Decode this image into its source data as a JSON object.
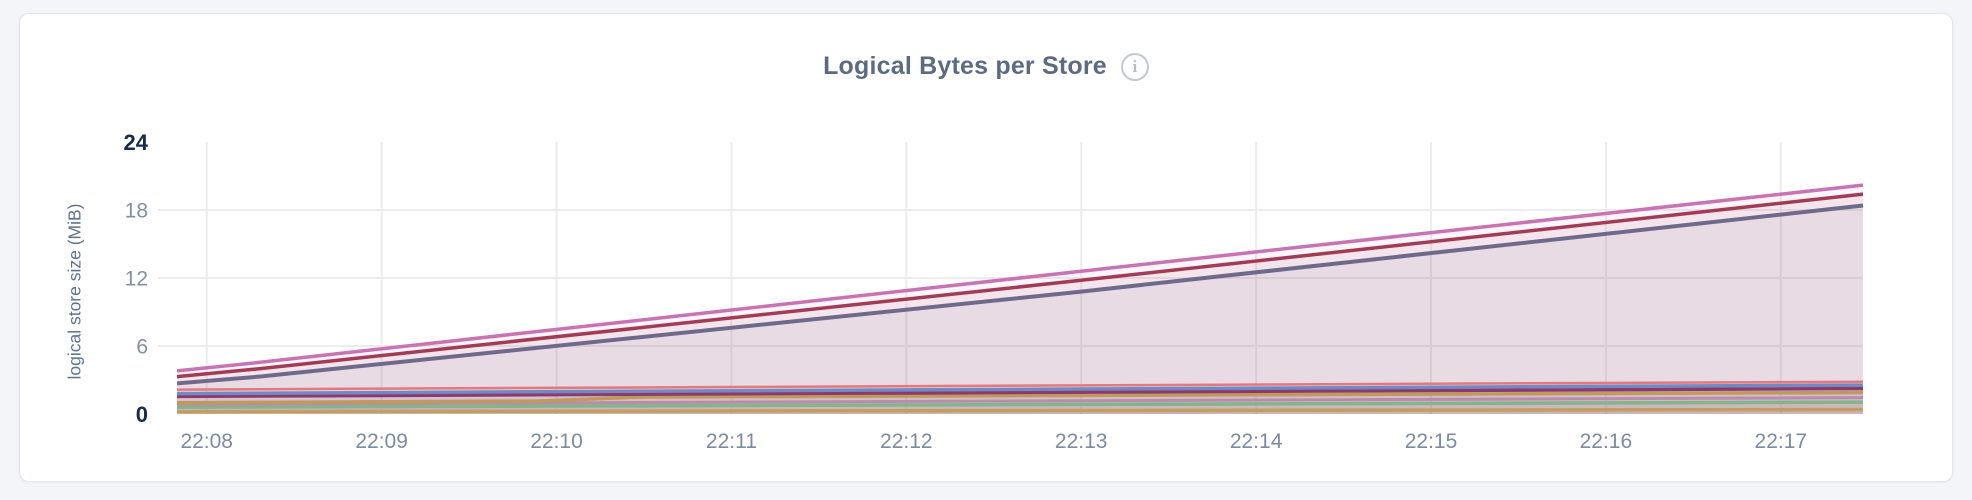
{
  "chart": {
    "title": "Logical Bytes per Store",
    "info_icon_glyph": "i",
    "ylabel": "logical store size (MiB)"
  },
  "chart_data": {
    "type": "area",
    "title": "Logical Bytes per Store",
    "ylabel": "logical store size (MiB)",
    "ylim": [
      0,
      24
    ],
    "x_domain_minutes": [
      7.83,
      17.47
    ],
    "x_tick_minutes": [
      8,
      9,
      10,
      11,
      12,
      13,
      14,
      15,
      16,
      17
    ],
    "xticklabels": [
      "22:08",
      "22:09",
      "22:10",
      "22:11",
      "22:12",
      "22:13",
      "22:14",
      "22:15",
      "22:16",
      "22:17"
    ],
    "yticks": [
      {
        "value": 24,
        "label": "24",
        "strong": true,
        "gridline": false
      },
      {
        "value": 18,
        "label": "18",
        "strong": false,
        "gridline": true
      },
      {
        "value": 12,
        "label": "12",
        "strong": false,
        "gridline": true
      },
      {
        "value": 6,
        "label": "6",
        "strong": false,
        "gridline": true
      },
      {
        "value": 0,
        "label": "0",
        "strong": true,
        "gridline": false
      }
    ],
    "grid": true,
    "legend": "none",
    "colors": {
      "grid": "#ececec",
      "fill_opacity": 0.08
    },
    "series": [
      {
        "name": "store-line-pink",
        "color": "#c873b4",
        "width": 3.5,
        "points": [
          [
            7.83,
            3.8
          ],
          [
            8.3,
            4.55
          ],
          [
            13.0,
            12.6
          ],
          [
            17.47,
            20.2
          ]
        ]
      },
      {
        "name": "store-line-darkred",
        "color": "#a23b57",
        "width": 3.5,
        "points": [
          [
            7.83,
            3.3
          ],
          [
            8.3,
            4.0
          ],
          [
            13.0,
            11.8
          ],
          [
            17.47,
            19.4
          ]
        ]
      },
      {
        "name": "store-line-slate",
        "color": "#6f6a8c",
        "width": 4,
        "points": [
          [
            7.83,
            2.7
          ],
          [
            8.3,
            3.3
          ],
          [
            13.0,
            10.8
          ],
          [
            17.47,
            18.4
          ]
        ]
      },
      {
        "name": "store-line-salmon",
        "color": "#e2797e",
        "width": 2.5,
        "points": [
          [
            7.83,
            2.15
          ],
          [
            17.47,
            2.85
          ]
        ]
      },
      {
        "name": "store-line-blue",
        "color": "#7389c1",
        "width": 3.5,
        "points": [
          [
            7.83,
            1.8
          ],
          [
            17.47,
            2.55
          ]
        ]
      },
      {
        "name": "store-line-magenta",
        "color": "#8c3a6e",
        "width": 3.5,
        "points": [
          [
            7.83,
            1.55
          ],
          [
            17.47,
            2.25
          ]
        ]
      },
      {
        "name": "store-line-tan",
        "color": "#bf9a5a",
        "width": 3.5,
        "points": [
          [
            7.83,
            1.0
          ],
          [
            9.9,
            1.15
          ],
          [
            10.5,
            1.5
          ],
          [
            17.47,
            1.9
          ]
        ]
      },
      {
        "name": "store-line-mauve",
        "color": "#b78dab",
        "width": 3,
        "points": [
          [
            7.83,
            0.85
          ],
          [
            17.47,
            1.45
          ]
        ]
      },
      {
        "name": "store-line-green",
        "color": "#83b48b",
        "width": 3.5,
        "points": [
          [
            7.83,
            0.6
          ],
          [
            17.47,
            1.05
          ]
        ]
      },
      {
        "name": "store-line-tan2",
        "color": "#c49e61",
        "width": 3.5,
        "points": [
          [
            7.83,
            0.2
          ],
          [
            17.47,
            0.4
          ]
        ]
      }
    ]
  }
}
